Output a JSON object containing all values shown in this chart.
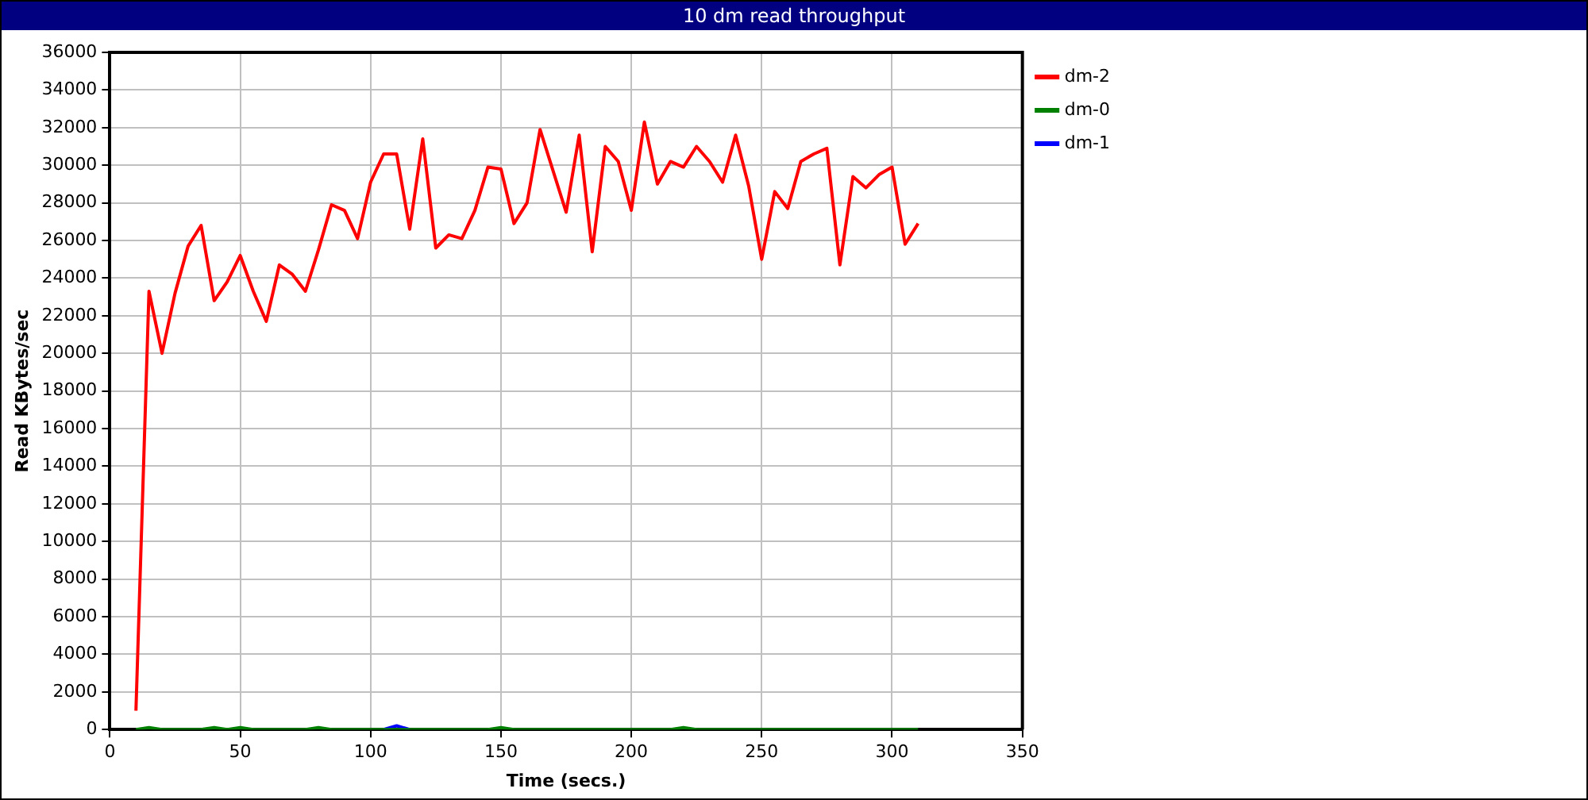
{
  "chart_data": {
    "type": "line",
    "title": "10 dm read throughput",
    "xlabel": "Time (secs.)",
    "ylabel": "Read KBytes/sec",
    "x": [
      10,
      15,
      20,
      25,
      30,
      35,
      40,
      45,
      50,
      55,
      60,
      65,
      70,
      75,
      80,
      85,
      90,
      95,
      100,
      105,
      110,
      115,
      120,
      125,
      130,
      135,
      140,
      145,
      150,
      155,
      160,
      165,
      170,
      175,
      180,
      185,
      190,
      195,
      200,
      205,
      210,
      215,
      220,
      225,
      230,
      235,
      240,
      245,
      250,
      255,
      260,
      265,
      270,
      275,
      280,
      285,
      290,
      295,
      300,
      305,
      310
    ],
    "series": [
      {
        "name": "dm-2",
        "color": "#ff0000",
        "values": [
          1000,
          23300,
          20000,
          23200,
          25700,
          26800,
          22800,
          23800,
          25200,
          23300,
          21700,
          24700,
          24200,
          23300,
          25500,
          27900,
          27600,
          26100,
          29100,
          30600,
          30600,
          26600,
          31400,
          25600,
          26300,
          26100,
          27600,
          29900,
          29800,
          26900,
          28000,
          31900,
          29700,
          27500,
          31600,
          25400,
          31000,
          30200,
          27600,
          32300,
          29000,
          30200,
          29900,
          31000,
          30200,
          29100,
          31600,
          28900,
          25000,
          28600,
          27700,
          30200,
          30600,
          30900,
          24700,
          29400,
          28800,
          29500,
          29900,
          25800,
          26900
        ]
      },
      {
        "name": "dm-0",
        "color": "#008000",
        "values": [
          0,
          100,
          0,
          0,
          0,
          0,
          100,
          0,
          100,
          0,
          0,
          0,
          0,
          0,
          100,
          0,
          0,
          0,
          0,
          0,
          0,
          0,
          0,
          0,
          0,
          0,
          0,
          0,
          100,
          0,
          0,
          0,
          0,
          0,
          0,
          0,
          0,
          0,
          0,
          0,
          0,
          0,
          100,
          0,
          0,
          0,
          0,
          0,
          0,
          0,
          0,
          0,
          0,
          0,
          0,
          0,
          0,
          0,
          0,
          0,
          0
        ]
      },
      {
        "name": "dm-1",
        "color": "#0000ff",
        "values": [
          null,
          null,
          null,
          null,
          null,
          null,
          null,
          null,
          null,
          null,
          null,
          null,
          null,
          null,
          null,
          null,
          null,
          null,
          null,
          0,
          200,
          0,
          null,
          null,
          null,
          null,
          null,
          null,
          null,
          null,
          null,
          null,
          null,
          null,
          null,
          null,
          null,
          null,
          null,
          null,
          null,
          null,
          null,
          null,
          null,
          null,
          null,
          null,
          null,
          null,
          null,
          null,
          null,
          null,
          null,
          null,
          null,
          null,
          null,
          null,
          null
        ]
      }
    ],
    "xlim": [
      0,
      350
    ],
    "xticks": [
      0,
      50,
      100,
      150,
      200,
      250,
      300,
      350
    ],
    "ylim": [
      0,
      36000
    ],
    "yticks": [
      0,
      2000,
      4000,
      6000,
      8000,
      10000,
      12000,
      14000,
      16000,
      18000,
      20000,
      22000,
      24000,
      26000,
      28000,
      30000,
      32000,
      34000,
      36000
    ],
    "grid": true,
    "legend": "top right",
    "marker": "none",
    "line_style": "solid"
  }
}
